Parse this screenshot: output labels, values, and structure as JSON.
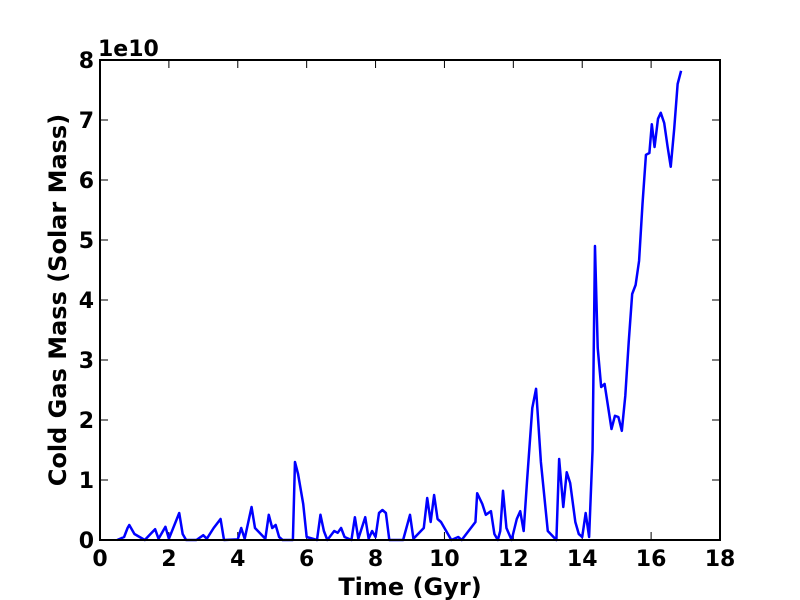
{
  "chart_data": {
    "type": "line",
    "xlabel": "Time (Gyr)",
    "ylabel": "Cold Gas Mass (Solar Mass)",
    "y_offset_label": "1e10",
    "xlim": [
      0,
      18
    ],
    "xticks": [
      0,
      2,
      4,
      6,
      8,
      10,
      12,
      14,
      16,
      18
    ],
    "ylim": [
      0,
      8
    ],
    "yticks": [
      0,
      1,
      2,
      3,
      4,
      5,
      6,
      7,
      8
    ],
    "grid": false,
    "x": [
      0.5,
      0.7,
      0.8,
      0.85,
      1.0,
      1.3,
      1.5,
      1.6,
      1.7,
      1.9,
      2.0,
      2.3,
      2.4,
      2.5,
      2.8,
      3.0,
      3.1,
      3.3,
      3.5,
      3.6,
      4.0,
      4.1,
      4.2,
      4.4,
      4.5,
      4.8,
      4.9,
      5.0,
      5.1,
      5.2,
      5.3,
      5.6,
      5.66,
      5.75,
      5.9,
      6.0,
      6.3,
      6.4,
      6.5,
      6.6,
      6.8,
      6.9,
      7.0,
      7.1,
      7.3,
      7.4,
      7.5,
      7.7,
      7.8,
      7.9,
      8.0,
      8.1,
      8.2,
      8.3,
      8.4,
      8.8,
      9.0,
      9.1,
      9.4,
      9.5,
      9.6,
      9.7,
      9.8,
      9.9,
      10.2,
      10.4,
      10.5,
      10.7,
      10.9,
      10.95,
      11.1,
      11.2,
      11.35,
      11.45,
      11.55,
      11.62,
      11.7,
      11.8,
      11.95,
      12.1,
      12.2,
      12.3,
      12.4,
      12.55,
      12.66,
      12.8,
      13.0,
      13.25,
      13.33,
      13.45,
      13.55,
      13.65,
      13.8,
      13.9,
      14.0,
      14.1,
      14.2,
      14.3,
      14.37,
      14.45,
      14.55,
      14.65,
      14.85,
      14.95,
      15.05,
      15.15,
      15.25,
      15.35,
      15.45,
      15.55,
      15.65,
      15.75,
      15.85,
      15.95,
      16.02,
      16.1,
      16.2,
      16.28,
      16.38,
      16.48,
      16.57,
      16.67,
      16.77,
      16.87
    ],
    "series": [
      {
        "color": "#0000ff",
        "values": [
          0,
          0.05,
          0.2,
          0.25,
          0.1,
          0,
          0.12,
          0.18,
          0.02,
          0.22,
          0.02,
          0.45,
          0.1,
          0,
          0,
          0.08,
          0.02,
          0.2,
          0.35,
          0,
          0.01,
          0.2,
          0.02,
          0.55,
          0.2,
          0.02,
          0.42,
          0.2,
          0.25,
          0.05,
          0,
          0,
          1.3,
          1.1,
          0.6,
          0.05,
          0,
          0.42,
          0.15,
          0,
          0.15,
          0.12,
          0.2,
          0.05,
          0,
          0.38,
          0.02,
          0.38,
          0.02,
          0.15,
          0.05,
          0.45,
          0.5,
          0.45,
          0,
          0,
          0.42,
          0.02,
          0.2,
          0.7,
          0.3,
          0.75,
          0.35,
          0.3,
          0,
          0.05,
          0,
          0.15,
          0.3,
          0.78,
          0.6,
          0.42,
          0.48,
          0.1,
          0,
          0.15,
          0.82,
          0.2,
          0,
          0.35,
          0.48,
          0.15,
          1.0,
          2.2,
          2.52,
          1.3,
          0.15,
          0,
          1.35,
          0.55,
          1.13,
          0.95,
          0.3,
          0.1,
          0.05,
          0.45,
          0.05,
          1.5,
          4.9,
          3.2,
          2.55,
          2.6,
          1.85,
          2.07,
          2.05,
          1.82,
          2.4,
          3.3,
          4.1,
          4.25,
          4.65,
          5.6,
          6.42,
          6.45,
          6.93,
          6.55,
          7.02,
          7.12,
          6.95,
          6.55,
          6.22,
          6.85,
          7.6,
          7.82
        ]
      }
    ]
  }
}
